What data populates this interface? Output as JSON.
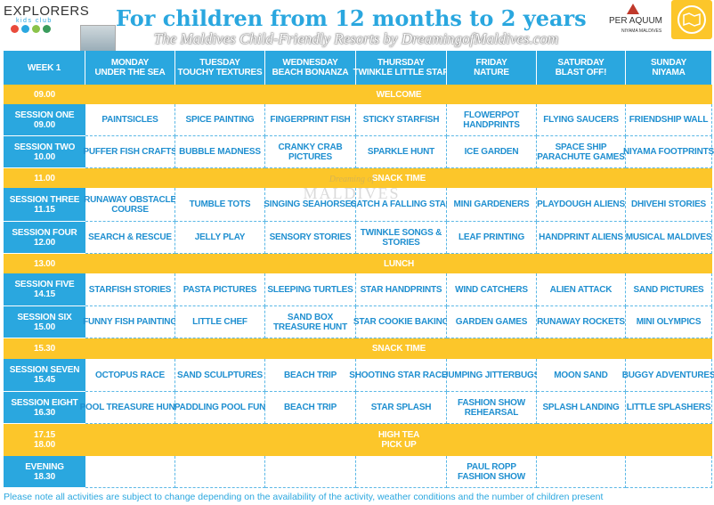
{
  "header": {
    "logo": "EXPLORERS",
    "logo_sub": "kids club",
    "title": "For children from 12 months to 2 years",
    "watermark": "The Maldives Child-Friendly Resorts by DreamingofMaldives.com",
    "brand": "PER AQUUM",
    "brand_sub": "NIYAMA MALDIVES"
  },
  "watermark_center": [
    "Dreaming of",
    "MALDIVES"
  ],
  "table": {
    "corner": "WEEK 1",
    "days": [
      {
        "day": "MONDAY",
        "theme": "UNDER THE SEA"
      },
      {
        "day": "TUESDAY",
        "theme": "TOUCHY TEXTURES"
      },
      {
        "day": "WEDNESDAY",
        "theme": "BEACH BONANZA"
      },
      {
        "day": "THURSDAY",
        "theme": "TWINKLE LITTLE STAR"
      },
      {
        "day": "FRIDAY",
        "theme": "NATURE"
      },
      {
        "day": "SATURDAY",
        "theme": "BLAST OFF!"
      },
      {
        "day": "SUNDAY",
        "theme": "NIYAMA"
      }
    ],
    "rows": [
      {
        "kind": "break",
        "label": [
          "09.00"
        ],
        "text": [
          "WELCOME"
        ]
      },
      {
        "kind": "session",
        "label": [
          "SESSION ONE",
          "09.00"
        ],
        "cells": [
          [
            "PAINTSICLES"
          ],
          [
            "SPICE PAINTING"
          ],
          [
            "FINGERPRINT FISH"
          ],
          [
            "STICKY STARFISH"
          ],
          [
            "FLOWERPOT",
            "HANDPRINTS"
          ],
          [
            "FLYING SAUCERS"
          ],
          [
            "FRIENDSHIP WALL"
          ]
        ]
      },
      {
        "kind": "session",
        "label": [
          "SESSION TWO",
          "10.00"
        ],
        "cells": [
          [
            "PUFFER FISH CRAFTS"
          ],
          [
            "BUBBLE MADNESS"
          ],
          [
            "CRANKY CRAB",
            "PICTURES"
          ],
          [
            "SPARKLE HUNT"
          ],
          [
            "ICE GARDEN"
          ],
          [
            "SPACE SHIP",
            "PARACHUTE GAMES"
          ],
          [
            "NIYAMA FOOTPRINTS"
          ]
        ]
      },
      {
        "kind": "break",
        "label": [
          "11.00"
        ],
        "text": [
          "SNACK TIME"
        ]
      },
      {
        "kind": "session",
        "label": [
          "SESSION THREE",
          "11.15"
        ],
        "cells": [
          [
            "RUNAWAY OBSTACLE",
            "COURSE"
          ],
          [
            "TUMBLE TOTS"
          ],
          [
            "SINGING SEAHORSES"
          ],
          [
            "CATCH A FALLING STAR"
          ],
          [
            "MINI GARDENERS"
          ],
          [
            "PLAYDOUGH ALIENS"
          ],
          [
            "DHIVEHI STORIES"
          ]
        ]
      },
      {
        "kind": "session",
        "label": [
          "SESSION FOUR",
          "12.00"
        ],
        "cells": [
          [
            "SEARCH & RESCUE"
          ],
          [
            "JELLY PLAY"
          ],
          [
            "SENSORY STORIES"
          ],
          [
            "TWINKLE SONGS &",
            "STORIES"
          ],
          [
            "LEAF PRINTING"
          ],
          [
            "HANDPRINT ALIENS"
          ],
          [
            "MUSICAL MALDIVES"
          ]
        ]
      },
      {
        "kind": "break",
        "label": [
          "13.00"
        ],
        "text": [
          "LUNCH"
        ]
      },
      {
        "kind": "session",
        "label": [
          "SESSION FIVE",
          "14.15"
        ],
        "cells": [
          [
            "STARFISH STORIES"
          ],
          [
            "PASTA PICTURES"
          ],
          [
            "SLEEPING TURTLES"
          ],
          [
            "STAR HANDPRINTS"
          ],
          [
            "WIND CATCHERS"
          ],
          [
            "ALIEN ATTACK"
          ],
          [
            "SAND PICTURES"
          ]
        ]
      },
      {
        "kind": "session",
        "label": [
          "SESSION SIX",
          "15.00"
        ],
        "cells": [
          [
            "FUNNY FISH PAINTING"
          ],
          [
            "LITTLE CHEF"
          ],
          [
            "SAND BOX",
            "TREASURE HUNT"
          ],
          [
            "STAR COOKIE BAKING"
          ],
          [
            "GARDEN GAMES"
          ],
          [
            "RUNAWAY ROCKETS"
          ],
          [
            "MINI OLYMPICS"
          ]
        ]
      },
      {
        "kind": "break",
        "label": [
          "15.30"
        ],
        "text": [
          "SNACK TIME"
        ]
      },
      {
        "kind": "session",
        "label": [
          "SESSION SEVEN",
          "15.45"
        ],
        "cells": [
          [
            "OCTOPUS RACE"
          ],
          [
            "SAND SCULPTURES"
          ],
          [
            "BEACH TRIP"
          ],
          [
            "SHOOTING STAR RACES"
          ],
          [
            "JUMPING JITTERBUGS"
          ],
          [
            "MOON SAND"
          ],
          [
            "BUGGY ADVENTURES"
          ]
        ]
      },
      {
        "kind": "session",
        "label": [
          "SESSION EIGHT",
          "16.30"
        ],
        "cells": [
          [
            "POOL TREASURE HUNT"
          ],
          [
            "PADDLING POOL FUN"
          ],
          [
            "BEACH TRIP"
          ],
          [
            "STAR SPLASH"
          ],
          [
            "FASHION SHOW",
            "REHEARSAL"
          ],
          [
            "SPLASH LANDING"
          ],
          [
            "LITTLE SPLASHERS"
          ]
        ]
      },
      {
        "kind": "break",
        "label": [
          "17.15",
          "18.00"
        ],
        "text": [
          "HIGH TEA",
          "PICK UP"
        ]
      },
      {
        "kind": "session",
        "label": [
          "EVENING",
          "18.30"
        ],
        "cells": [
          null,
          null,
          null,
          null,
          [
            "PAUL ROPP",
            "FASHION SHOW"
          ],
          null,
          null
        ]
      }
    ]
  },
  "footer": "Please note all activities are subject to change depending on the availability of the activity, weather conditions and the number of children present"
}
